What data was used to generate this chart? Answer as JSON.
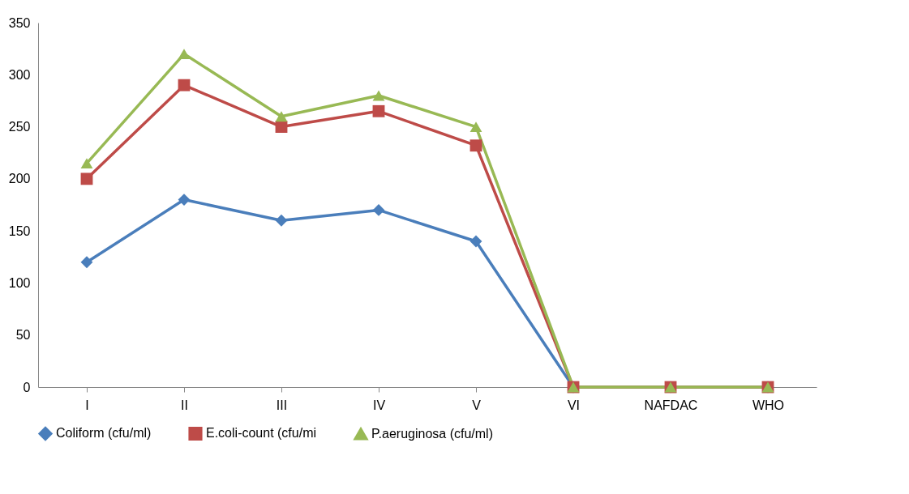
{
  "chart_data": {
    "type": "line",
    "categories": [
      "I",
      "II",
      "III",
      "IV",
      "V",
      "VI",
      "NAFDAC",
      "WHO"
    ],
    "ylim": [
      0,
      350
    ],
    "yticks": [
      0,
      50,
      100,
      150,
      200,
      250,
      300,
      350
    ],
    "grid": false,
    "legend": "bottom",
    "line_style": "solid",
    "series": [
      {
        "name": "Coliform (cfu/ml)",
        "color": "#4a7ebb",
        "marker": "diamond",
        "values": [
          120,
          180,
          160,
          170,
          140,
          0,
          0,
          0
        ]
      },
      {
        "name": "E.coli-count (cfu/mi",
        "color": "#be4b48",
        "marker": "square",
        "values": [
          200,
          290,
          250,
          265,
          232,
          0,
          0,
          0
        ]
      },
      {
        "name": "P.aeruginosa (cfu/ml)",
        "color": "#98b954",
        "marker": "triangle",
        "values": [
          215,
          320,
          260,
          280,
          250,
          0,
          0,
          0
        ]
      }
    ]
  }
}
